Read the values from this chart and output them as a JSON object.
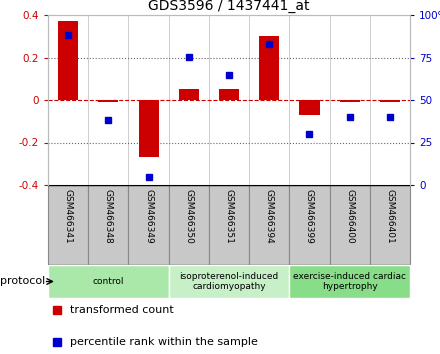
{
  "title": "GDS3596 / 1437441_at",
  "samples": [
    "GSM466341",
    "GSM466348",
    "GSM466349",
    "GSM466350",
    "GSM466351",
    "GSM466394",
    "GSM466399",
    "GSM466400",
    "GSM466401"
  ],
  "red_values": [
    0.37,
    -0.01,
    -0.27,
    0.05,
    0.05,
    0.3,
    -0.07,
    -0.01,
    -0.01
  ],
  "blue_percentiles": [
    88,
    38,
    5,
    75,
    65,
    83,
    30,
    40,
    40
  ],
  "ylim_left": [
    -0.4,
    0.4
  ],
  "ylim_right": [
    0,
    100
  ],
  "yticks_left": [
    -0.4,
    -0.2,
    0.0,
    0.2,
    0.4
  ],
  "yticks_right": [
    0,
    25,
    50,
    75,
    100
  ],
  "groups": [
    {
      "label": "control",
      "start": 0,
      "end": 3,
      "color": "#aae8aa"
    },
    {
      "label": "isoproterenol-induced\ncardiomyopathy",
      "start": 3,
      "end": 6,
      "color": "#c8f0c8"
    },
    {
      "label": "exercise-induced cardiac\nhypertrophy",
      "start": 6,
      "end": 9,
      "color": "#88dd88"
    }
  ],
  "protocol_label": "protocol",
  "red_color": "#cc0000",
  "blue_color": "#0000cc",
  "zero_line_color": "#cc0000",
  "grid_color": "#666666",
  "bar_width": 0.5,
  "legend_red": "transformed count",
  "legend_blue": "percentile rank within the sample",
  "sample_box_color": "#c8c8c8",
  "sample_box_edge": "#888888"
}
